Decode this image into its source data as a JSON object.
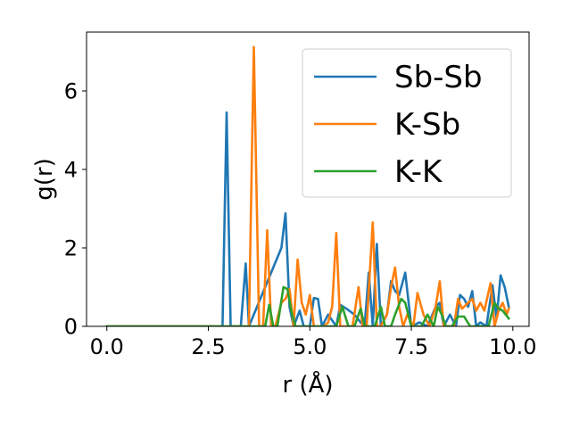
{
  "chart_data": {
    "type": "line",
    "title": "",
    "xlabel": "r (Å)",
    "ylabel": "g(r)",
    "xlim": [
      -0.5,
      10.4
    ],
    "ylim": [
      0,
      7.5
    ],
    "xticks": [
      0.0,
      2.5,
      5.0,
      7.5,
      10.0
    ],
    "xtick_labels": [
      "0.0",
      "2.5",
      "5.0",
      "7.5",
      "10.0"
    ],
    "yticks": [
      0,
      2,
      4,
      6
    ],
    "ytick_labels": [
      "0",
      "2",
      "4",
      "6"
    ],
    "grid": false,
    "legend_position": "top-right",
    "series": [
      {
        "name": "Sb-Sb",
        "color": "#1f77b4",
        "x": [
          0.0,
          2.75,
          2.85,
          2.95,
          3.05,
          3.3,
          3.42,
          3.5,
          4.3,
          4.4,
          4.5,
          4.6,
          4.75,
          4.85,
          5.0,
          5.1,
          5.2,
          5.3,
          5.45,
          5.65,
          5.75,
          5.9,
          6.1,
          6.25,
          6.35,
          6.45,
          6.55,
          6.65,
          6.75,
          6.9,
          7.0,
          7.1,
          7.2,
          7.35,
          7.5,
          7.7,
          7.9,
          8.1,
          8.2,
          8.3,
          8.45,
          8.6,
          8.7,
          8.8,
          8.9,
          9.0,
          9.1,
          9.2,
          9.35,
          9.5,
          9.6,
          9.7,
          9.8,
          9.9
        ],
        "y": [
          0.0,
          0.0,
          0.0,
          5.45,
          0.0,
          0.0,
          1.6,
          0.0,
          2.0,
          2.88,
          0.5,
          0.0,
          0.4,
          0.0,
          0.0,
          0.72,
          0.7,
          0.0,
          0.3,
          0.0,
          0.55,
          0.45,
          0.3,
          0.1,
          0.0,
          1.37,
          0.0,
          2.1,
          0.0,
          0.3,
          1.15,
          0.9,
          0.8,
          1.37,
          0.0,
          0.1,
          0.0,
          0.5,
          0.6,
          0.0,
          0.3,
          0.0,
          0.8,
          0.7,
          0.5,
          0.9,
          0.0,
          0.1,
          0.0,
          1.05,
          0.2,
          1.3,
          1.0,
          0.5
        ]
      },
      {
        "name": "K-Sb",
        "color": "#ff7f0e",
        "x": [
          0.0,
          3.3,
          3.5,
          3.62,
          3.75,
          3.85,
          3.95,
          4.05,
          4.15,
          4.3,
          4.4,
          4.5,
          4.6,
          4.7,
          4.8,
          4.9,
          5.0,
          5.1,
          5.2,
          5.35,
          5.45,
          5.55,
          5.65,
          5.75,
          5.9,
          6.05,
          6.2,
          6.3,
          6.4,
          6.55,
          6.65,
          6.75,
          6.9,
          7.0,
          7.1,
          7.2,
          7.3,
          7.4,
          7.55,
          7.65,
          7.8,
          7.95,
          8.1,
          8.2,
          8.3,
          8.45,
          8.55,
          8.65,
          8.75,
          8.9,
          9.0,
          9.1,
          9.2,
          9.3,
          9.45,
          9.55,
          9.65,
          9.75,
          9.85,
          9.9
        ],
        "y": [
          0.0,
          0.0,
          0.0,
          7.12,
          0.0,
          0.0,
          2.45,
          0.0,
          0.0,
          0.6,
          0.7,
          0.95,
          0.0,
          1.7,
          0.6,
          0.3,
          0.8,
          0.0,
          0.0,
          0.0,
          0.1,
          0.5,
          2.38,
          0.0,
          0.0,
          0.0,
          1.0,
          0.0,
          0.0,
          2.65,
          0.0,
          0.0,
          0.3,
          1.0,
          1.5,
          0.5,
          0.0,
          0.3,
          0.0,
          0.85,
          0.3,
          0.0,
          0.5,
          1.15,
          0.0,
          0.0,
          0.0,
          0.7,
          0.45,
          0.6,
          0.7,
          0.4,
          0.6,
          0.4,
          1.1,
          0.0,
          0.4,
          0.6,
          0.3,
          0.45
        ]
      },
      {
        "name": "K-K",
        "color": "#2ca02c",
        "x": [
          0.0,
          3.8,
          3.9,
          4.0,
          4.1,
          4.2,
          4.35,
          4.45,
          4.55,
          4.65,
          4.8,
          4.95,
          5.05,
          5.2,
          5.35,
          5.5,
          5.65,
          5.8,
          5.95,
          6.1,
          6.25,
          6.35,
          6.5,
          6.6,
          6.75,
          6.85,
          7.0,
          7.1,
          7.25,
          7.35,
          7.5,
          7.6,
          7.75,
          7.9,
          8.05,
          8.15,
          8.25,
          8.35,
          8.5,
          8.65,
          8.8,
          8.95,
          9.1,
          9.25,
          9.4,
          9.55,
          9.65,
          9.75,
          9.9
        ],
        "y": [
          0.0,
          0.0,
          0.0,
          0.55,
          0.0,
          0.0,
          1.0,
          0.95,
          0.35,
          0.0,
          0.0,
          0.0,
          0.0,
          0.0,
          0.0,
          0.0,
          0.0,
          0.5,
          0.0,
          0.0,
          0.45,
          0.0,
          0.0,
          0.0,
          0.5,
          0.0,
          0.0,
          0.3,
          0.7,
          0.6,
          0.0,
          0.0,
          0.0,
          0.3,
          0.0,
          0.5,
          0.3,
          0.0,
          0.0,
          0.25,
          0.25,
          0.0,
          0.0,
          0.0,
          0.0,
          0.6,
          0.45,
          0.4,
          0.2
        ]
      }
    ]
  }
}
